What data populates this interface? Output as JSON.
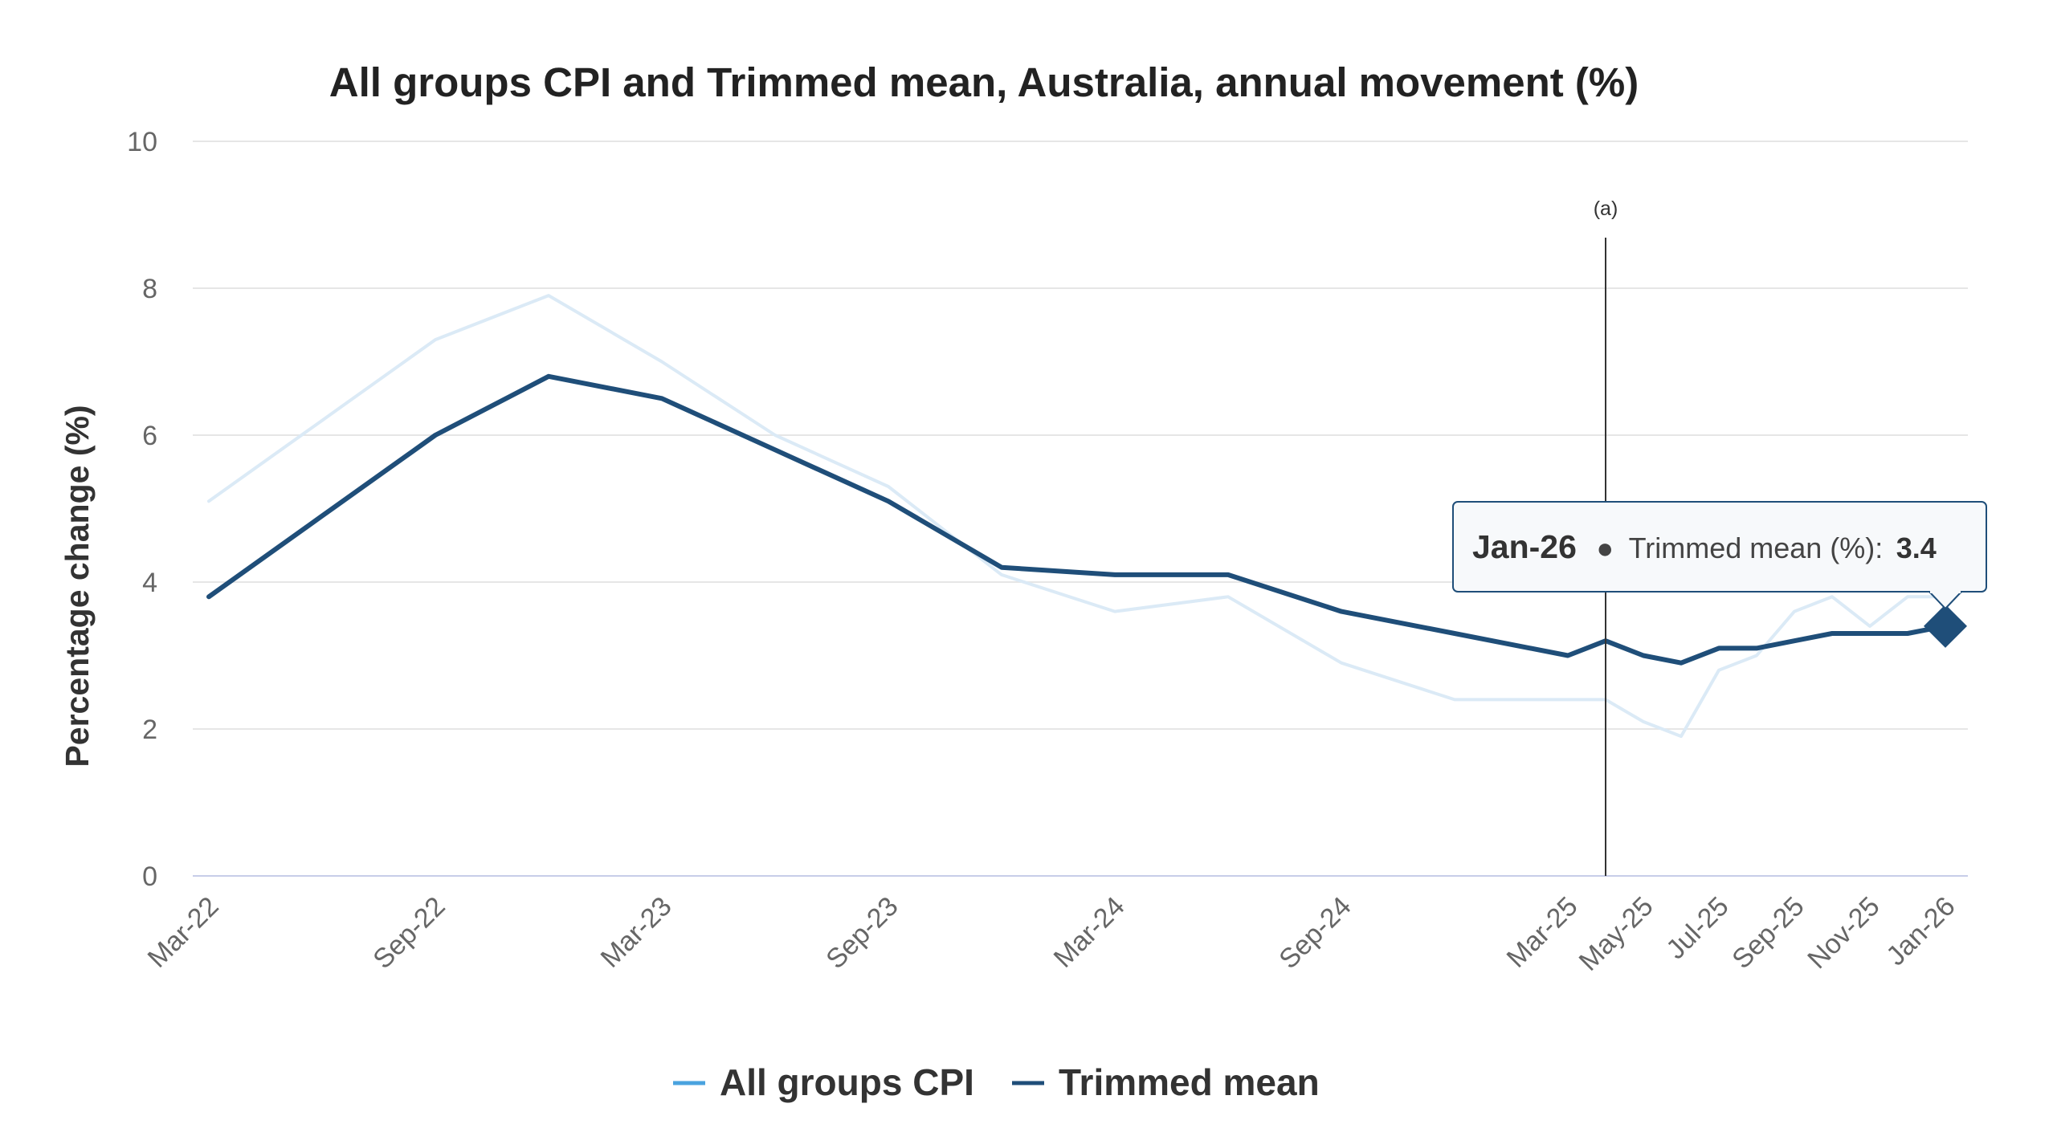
{
  "chart_data": {
    "type": "line",
    "title": "All groups CPI and Trimmed mean, Australia, annual movement (%)",
    "ylabel": "Percentage change (%)",
    "xlabel": "",
    "ylim": [
      0,
      10
    ],
    "yticks": [
      "0",
      "2",
      "4",
      "6",
      "8",
      "10"
    ],
    "grid": true,
    "legend_position": "bottom",
    "x": [
      "Mar-22",
      "Jun-22",
      "Sep-22",
      "Dec-22",
      "Mar-23",
      "Jun-23",
      "Sep-23",
      "Dec-23",
      "Mar-24",
      "Jun-24",
      "Sep-24",
      "Dec-24",
      "Mar-25",
      "Apr-25",
      "May-25",
      "Jun-25",
      "Jul-25",
      "Aug-25",
      "Sep-25",
      "Oct-25",
      "Nov-25",
      "Dec-25",
      "Jan-26"
    ],
    "xtick_labels": [
      "Mar-22",
      "Sep-22",
      "Mar-23",
      "Sep-23",
      "Mar-24",
      "Sep-24",
      "Mar-25",
      "May-25",
      "Jul-25",
      "Sep-25",
      "Nov-25",
      "Jan-26"
    ],
    "series": [
      {
        "name": "All groups CPI",
        "color": "#dbeaf6",
        "legend_color": "#4aa3df",
        "values": [
          5.1,
          6.2,
          7.3,
          7.9,
          7.0,
          6.0,
          5.3,
          4.1,
          3.6,
          3.8,
          2.9,
          2.4,
          2.4,
          2.4,
          2.1,
          1.9,
          2.8,
          3.0,
          3.6,
          3.8,
          3.4,
          3.8,
          3.8
        ]
      },
      {
        "name": "Trimmed mean",
        "color": "#1f4e79",
        "legend_color": "#1f4e79",
        "values": [
          3.8,
          4.9,
          6.0,
          6.8,
          6.5,
          5.8,
          5.1,
          4.2,
          4.1,
          4.1,
          3.6,
          3.3,
          3.0,
          3.2,
          3.0,
          2.9,
          3.1,
          3.1,
          3.2,
          3.3,
          3.3,
          3.3,
          3.4
        ]
      }
    ],
    "annotation": {
      "label": "(a)",
      "x": "Apr-25"
    },
    "tooltip": {
      "date": "Jan-26",
      "series_label": "Trimmed mean (%):",
      "value": "3.4"
    }
  }
}
